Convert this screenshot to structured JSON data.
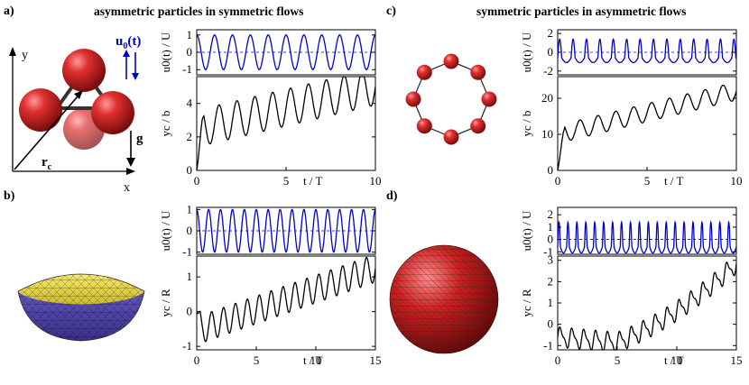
{
  "panels": {
    "a": {
      "label": "a)",
      "title": "asymmetric particles in symmetric flows"
    },
    "b": {
      "label": "b)"
    },
    "c": {
      "label": "c)",
      "title": "symmetric particles in asymmetric flows"
    },
    "d": {
      "label": "d)"
    }
  },
  "schematic": {
    "y_axis": "y",
    "x_axis": "x",
    "u0_label": "u",
    "u0_sub": "0",
    "u0_rest": "(t)",
    "g_label": "g",
    "rc_label": "r",
    "rc_sub": "c"
  },
  "axis_labels": {
    "u0_U": "u0(t) / U",
    "yc_b": "yc / b",
    "yc_R": "yc / R",
    "t_T": "t / T"
  },
  "colors": {
    "flow": "#0000cc",
    "trajectory": "#000000",
    "sphere": "#cc2222",
    "cap_top": "#e6d84a",
    "cap_bottom": "#5a4fb5"
  },
  "chart_data": [
    {
      "id": "a-top",
      "type": "line",
      "xlim": [
        0,
        10
      ],
      "ylim": [
        -1.3,
        1.3
      ],
      "ylabel": "u0(t) / U",
      "yticks": [
        1,
        0,
        -1
      ],
      "series": [
        {
          "kind": "sin",
          "amp": 1,
          "period": 1,
          "xmax": 10
        }
      ]
    },
    {
      "id": "a-bottom",
      "type": "line",
      "xlim": [
        0,
        10
      ],
      "ylim": [
        0,
        5.6
      ],
      "xlabel": "t / T",
      "ylabel": "yc / b",
      "xticks": [
        0,
        5,
        10
      ],
      "yticks": [
        0,
        2,
        4
      ],
      "series": [
        {
          "kind": "drift",
          "base": 2.5,
          "slope": 0.25,
          "amp": 1.1,
          "period": 1,
          "start": 0,
          "xmax": 10
        }
      ]
    },
    {
      "id": "b-top",
      "type": "line",
      "xlim": [
        0,
        15
      ],
      "ylim": [
        -1.1,
        1.1
      ],
      "ylabel": "u0(t) / U",
      "yticks": [
        1,
        0,
        -1
      ],
      "series": [
        {
          "kind": "sin",
          "amp": 1,
          "period": 1,
          "xmax": 15
        }
      ]
    },
    {
      "id": "b-bottom",
      "type": "line",
      "xlim": [
        0,
        15
      ],
      "ylim": [
        -1.1,
        1.6
      ],
      "xlabel": "t / T",
      "ylabel": "yc / R",
      "xticks": [
        0,
        5,
        10,
        15
      ],
      "yticks": [
        1,
        0,
        -1
      ],
      "series": [
        {
          "kind": "drift",
          "base": -0.55,
          "slope": 0.12,
          "amp": 0.4,
          "period": 1,
          "start": 0,
          "xmax": 15
        }
      ]
    },
    {
      "id": "c-top",
      "type": "line",
      "xlim": [
        0,
        10
      ],
      "ylim": [
        -2.4,
        2.4
      ],
      "ylabel": "u0(t) / U",
      "yticks": [
        2,
        0,
        -2
      ],
      "series": [
        {
          "kind": "asym",
          "amp": 1.0,
          "period": 0.75,
          "xmax": 10
        }
      ]
    },
    {
      "id": "c-bottom",
      "type": "line",
      "xlim": [
        0,
        10
      ],
      "ylim": [
        0,
        26
      ],
      "xlabel": "t / T",
      "ylabel": "yc / b",
      "xticks": [
        0,
        5,
        10
      ],
      "yticks": [
        0,
        10,
        20
      ],
      "series": [
        {
          "kind": "drift",
          "base": 10,
          "slope": 1.2,
          "amp": 2.5,
          "period": 1,
          "start": 0,
          "xmax": 10
        }
      ]
    },
    {
      "id": "d-top",
      "type": "line",
      "xlim": [
        0,
        15
      ],
      "ylim": [
        -1.2,
        2.6
      ],
      "ylabel": "u0(t) / U",
      "yticks": [
        2,
        1,
        0,
        -1
      ],
      "series": [
        {
          "kind": "asym",
          "amp": 1.0,
          "period": 0.75,
          "xmax": 15
        }
      ]
    },
    {
      "id": "d-bottom",
      "type": "line",
      "xlim": [
        0,
        15
      ],
      "ylim": [
        -1.2,
        3.2
      ],
      "xlabel": "t / T",
      "ylabel": "yc / R",
      "xticks": [
        0,
        5,
        10,
        15
      ],
      "yticks": [
        3,
        2,
        1,
        0,
        -1
      ],
      "series": [
        {
          "kind": "vdrift",
          "amp": 0.4,
          "period": 1,
          "xmax": 15
        }
      ]
    }
  ]
}
